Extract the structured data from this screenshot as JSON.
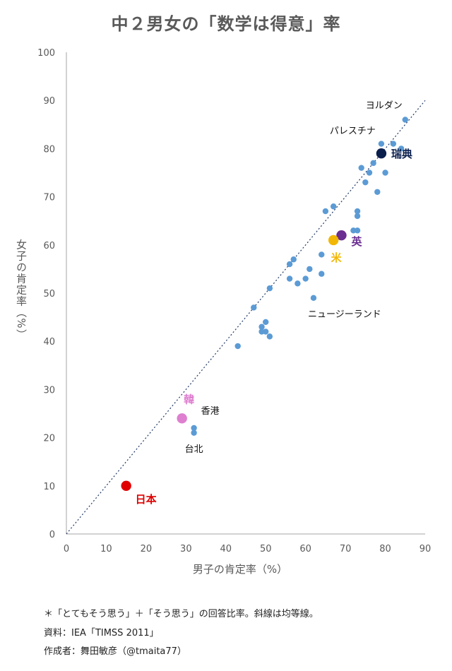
{
  "chart_data": {
    "type": "scatter",
    "title": "中２男女の「数学は得意」率",
    "xlabel": "男子の肯定率（%）",
    "ylabel": "女子の肯定率（%）",
    "xlim": [
      0,
      90
    ],
    "ylim": [
      0,
      100
    ],
    "xticks": [
      0,
      10,
      20,
      30,
      40,
      50,
      60,
      70,
      80,
      90
    ],
    "yticks": [
      0,
      10,
      20,
      30,
      40,
      50,
      60,
      70,
      80,
      90,
      100
    ],
    "grid": false,
    "reference_line": {
      "label": "均等線",
      "x": [
        0,
        90
      ],
      "y": [
        0,
        90
      ],
      "style": "dotted",
      "color": "#1f3864"
    },
    "points": [
      {
        "x": 85,
        "y": 86
      },
      {
        "x": 82,
        "y": 81
      },
      {
        "x": 84,
        "y": 80
      },
      {
        "x": 79,
        "y": 81
      },
      {
        "x": 77,
        "y": 77
      },
      {
        "x": 76,
        "y": 75
      },
      {
        "x": 74,
        "y": 76
      },
      {
        "x": 80,
        "y": 75
      },
      {
        "x": 75,
        "y": 73
      },
      {
        "x": 78,
        "y": 71
      },
      {
        "x": 67,
        "y": 68
      },
      {
        "x": 65,
        "y": 67
      },
      {
        "x": 73,
        "y": 67
      },
      {
        "x": 73,
        "y": 66
      },
      {
        "x": 72,
        "y": 63
      },
      {
        "x": 73,
        "y": 63
      },
      {
        "x": 64,
        "y": 58
      },
      {
        "x": 57,
        "y": 57
      },
      {
        "x": 56,
        "y": 56
      },
      {
        "x": 61,
        "y": 55
      },
      {
        "x": 64,
        "y": 54
      },
      {
        "x": 56,
        "y": 53
      },
      {
        "x": 60,
        "y": 53
      },
      {
        "x": 58,
        "y": 52
      },
      {
        "x": 51,
        "y": 51
      },
      {
        "x": 62,
        "y": 49
      },
      {
        "x": 47,
        "y": 47
      },
      {
        "x": 49,
        "y": 43
      },
      {
        "x": 50,
        "y": 44
      },
      {
        "x": 50,
        "y": 42
      },
      {
        "x": 49,
        "y": 42
      },
      {
        "x": 51,
        "y": 41
      },
      {
        "x": 43,
        "y": 39
      },
      {
        "x": 32,
        "y": 22
      },
      {
        "x": 32,
        "y": 21
      }
    ],
    "highlighted": [
      {
        "name": "瑞典",
        "x": 79,
        "y": 79,
        "color": "#0b1f4d"
      },
      {
        "name": "英",
        "x": 69,
        "y": 62,
        "color": "#6a2d91"
      },
      {
        "name": "米",
        "x": 67,
        "y": 61,
        "color": "#f2b705"
      },
      {
        "name": "韓",
        "x": 29,
        "y": 24,
        "color": "#de7fd0"
      },
      {
        "name": "日本",
        "x": 15,
        "y": 10,
        "color": "#e00000"
      }
    ],
    "annotations": [
      {
        "text": "ヨルダン",
        "x": 85,
        "y": 86
      },
      {
        "text": "パレスチナ",
        "x": 79,
        "y": 81
      },
      {
        "text": "ニュージーランド",
        "x": 62,
        "y": 49
      },
      {
        "text": "香港",
        "x": 32,
        "y": 22
      },
      {
        "text": "台北",
        "x": 32,
        "y": 21
      }
    ],
    "point_color": "#5b9bd5",
    "axis_color": "#a6a6a6",
    "label_color": "#595959"
  },
  "footnotes": {
    "note": "＊「とてもそう思う」＋「そう思う」の回答比率。斜線は均等線。",
    "source": "資料：IEA「TIMSS 2011」",
    "author": "作成者：舞田敏彦（@tmaita77）"
  }
}
